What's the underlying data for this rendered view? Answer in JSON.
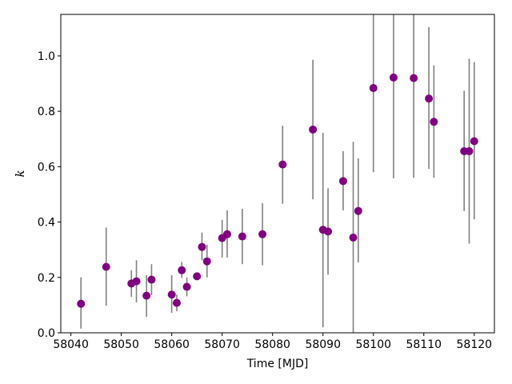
{
  "chart_data": {
    "type": "scatter",
    "title": "",
    "xlabel": "Time [MJD]",
    "ylabel": "k",
    "xlim": [
      58038.0,
      58124.0
    ],
    "ylim": [
      0.0,
      1.15
    ],
    "xticks": [
      58040,
      58050,
      58060,
      58070,
      58080,
      58090,
      58100,
      58110,
      58120
    ],
    "xtick_labels": [
      "58040",
      "58050",
      "58060",
      "58070",
      "58080",
      "58090",
      "58100",
      "58110",
      "58120"
    ],
    "yticks": [
      0.0,
      0.2,
      0.4,
      0.6,
      0.8,
      1.0
    ],
    "ytick_labels": [
      "0.0",
      "0.2",
      "0.4",
      "0.6",
      "0.8",
      "1.0"
    ],
    "grid": false,
    "marker_color": "#800080",
    "errorbar_color": "#808080",
    "points": [
      {
        "x": 58042.0,
        "y": 0.105,
        "lo": 0.015,
        "hi": 0.2
      },
      {
        "x": 58047.0,
        "y": 0.238,
        "lo": 0.098,
        "hi": 0.38
      },
      {
        "x": 58052.0,
        "y": 0.178,
        "lo": 0.13,
        "hi": 0.226
      },
      {
        "x": 58053.0,
        "y": 0.186,
        "lo": 0.11,
        "hi": 0.262
      },
      {
        "x": 58055.0,
        "y": 0.134,
        "lo": 0.058,
        "hi": 0.208
      },
      {
        "x": 58056.0,
        "y": 0.192,
        "lo": 0.136,
        "hi": 0.248
      },
      {
        "x": 58060.0,
        "y": 0.138,
        "lo": 0.072,
        "hi": 0.208
      },
      {
        "x": 58061.0,
        "y": 0.108,
        "lo": 0.078,
        "hi": 0.138
      },
      {
        "x": 58062.0,
        "y": 0.226,
        "lo": 0.198,
        "hi": 0.256
      },
      {
        "x": 58063.0,
        "y": 0.166,
        "lo": 0.132,
        "hi": 0.2
      },
      {
        "x": 58065.0,
        "y": 0.204,
        "lo": 0.196,
        "hi": 0.212
      },
      {
        "x": 58066.0,
        "y": 0.31,
        "lo": 0.262,
        "hi": 0.362
      },
      {
        "x": 58067.0,
        "y": 0.258,
        "lo": 0.2,
        "hi": 0.318
      },
      {
        "x": 58070.0,
        "y": 0.342,
        "lo": 0.272,
        "hi": 0.408
      },
      {
        "x": 58071.0,
        "y": 0.356,
        "lo": 0.272,
        "hi": 0.442
      },
      {
        "x": 58074.0,
        "y": 0.348,
        "lo": 0.248,
        "hi": 0.448
      },
      {
        "x": 58078.0,
        "y": 0.356,
        "lo": 0.244,
        "hi": 0.468
      },
      {
        "x": 58082.0,
        "y": 0.608,
        "lo": 0.466,
        "hi": 0.748
      },
      {
        "x": 58088.0,
        "y": 0.734,
        "lo": 0.482,
        "hi": 0.986
      },
      {
        "x": 58090.0,
        "y": 0.372,
        "lo": 0.02,
        "hi": 0.722
      },
      {
        "x": 58091.0,
        "y": 0.366,
        "lo": 0.21,
        "hi": 0.522
      },
      {
        "x": 58094.0,
        "y": 0.548,
        "lo": 0.442,
        "hi": 0.656
      },
      {
        "x": 58096.0,
        "y": 0.344,
        "lo": 0.0,
        "hi": 0.69
      },
      {
        "x": 58097.0,
        "y": 0.44,
        "lo": 0.254,
        "hi": 0.63
      },
      {
        "x": 58100.0,
        "y": 0.884,
        "lo": 0.58,
        "hi": 1.2
      },
      {
        "x": 58104.0,
        "y": 0.922,
        "lo": 0.558,
        "hi": 1.2
      },
      {
        "x": 58108.0,
        "y": 0.92,
        "lo": 0.56,
        "hi": 1.2
      },
      {
        "x": 58111.0,
        "y": 0.846,
        "lo": 0.592,
        "hi": 1.104
      },
      {
        "x": 58112.0,
        "y": 0.762,
        "lo": 0.56,
        "hi": 0.966
      },
      {
        "x": 58118.0,
        "y": 0.656,
        "lo": 0.44,
        "hi": 0.874
      },
      {
        "x": 58119.0,
        "y": 0.656,
        "lo": 0.322,
        "hi": 0.99
      },
      {
        "x": 58120.0,
        "y": 0.692,
        "lo": 0.41,
        "hi": 0.978
      }
    ]
  }
}
